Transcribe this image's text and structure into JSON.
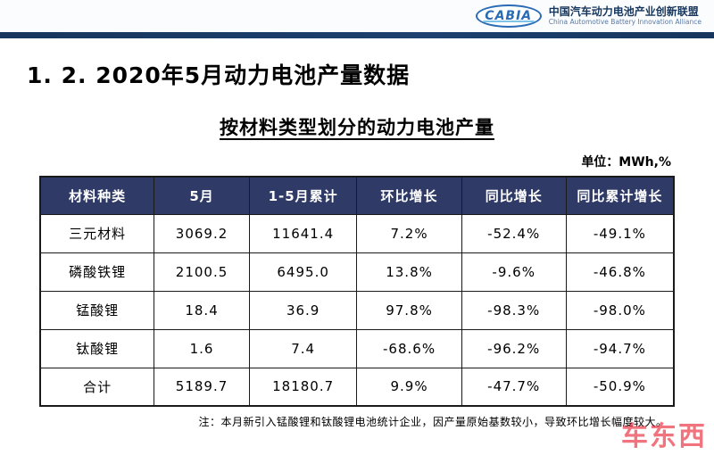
{
  "header": {
    "logo_text": "CABIA",
    "org_name_cn": "中国汽车动力电池产业创新联盟",
    "org_name_en": "China Automotive Battery Innovation Alliance"
  },
  "title": "1. 2.  2020年5月动力电池产量数据",
  "subtitle": "按材料类型划分的动力电池产量",
  "unit_label": "单位：MWh,%",
  "table": {
    "headers": [
      "材料种类",
      "5月",
      "1-5月累计",
      "环比增长",
      "同比增长",
      "同比累计增长"
    ],
    "rows": [
      [
        "三元材料",
        "3069.2",
        "11641.4",
        "7.2%",
        "-52.4%",
        "-49.1%"
      ],
      [
        "磷酸铁锂",
        "2100.5",
        "6495.0",
        "13.8%",
        "-9.6%",
        "-46.8%"
      ],
      [
        "锰酸锂",
        "18.4",
        "36.9",
        "97.8%",
        "-98.3%",
        "-98.0%"
      ],
      [
        "钛酸锂",
        "1.6",
        "7.4",
        "-68.6%",
        "-96.2%",
        "-94.7%"
      ],
      [
        "合计",
        "5189.7",
        "18180.7",
        "9.9%",
        "-47.7%",
        "-50.9%"
      ]
    ]
  },
  "note": "注：本月新引入锰酸锂和钛酸锂电池统计企业，因产量原始基数较小，导致环比增长幅度较大。",
  "watermark": "车东西",
  "chart_data": {
    "type": "table",
    "title": "按材料类型划分的动力电池产量",
    "unit": "MWh,%",
    "columns": [
      "材料种类",
      "5月",
      "1-5月累计",
      "环比增长",
      "同比增长",
      "同比累计增长"
    ],
    "rows": [
      {
        "材料种类": "三元材料",
        "5月": 3069.2,
        "1-5月累计": 11641.4,
        "环比增长": 7.2,
        "同比增长": -52.4,
        "同比累计增长": -49.1
      },
      {
        "材料种类": "磷酸铁锂",
        "5月": 2100.5,
        "1-5月累计": 6495.0,
        "环比增长": 13.8,
        "同比增长": -9.6,
        "同比累计增长": -46.8
      },
      {
        "材料种类": "锰酸锂",
        "5月": 18.4,
        "1-5月累计": 36.9,
        "环比增长": 97.8,
        "同比增长": -98.3,
        "同比累计增长": -98.0
      },
      {
        "材料种类": "钛酸锂",
        "5月": 1.6,
        "1-5月累计": 7.4,
        "环比增长": -68.6,
        "同比增长": -96.2,
        "同比累计增长": -94.7
      },
      {
        "材料种类": "合计",
        "5月": 5189.7,
        "1-5月累计": 18180.7,
        "环比增长": 9.9,
        "同比增长": -47.7,
        "同比累计增长": -50.9
      }
    ]
  },
  "colors": {
    "table_header_bg": "#2f3a67",
    "divider_navy": "#17365d",
    "brand_blue": "#2a6bb5",
    "watermark_red": "#e60012"
  }
}
